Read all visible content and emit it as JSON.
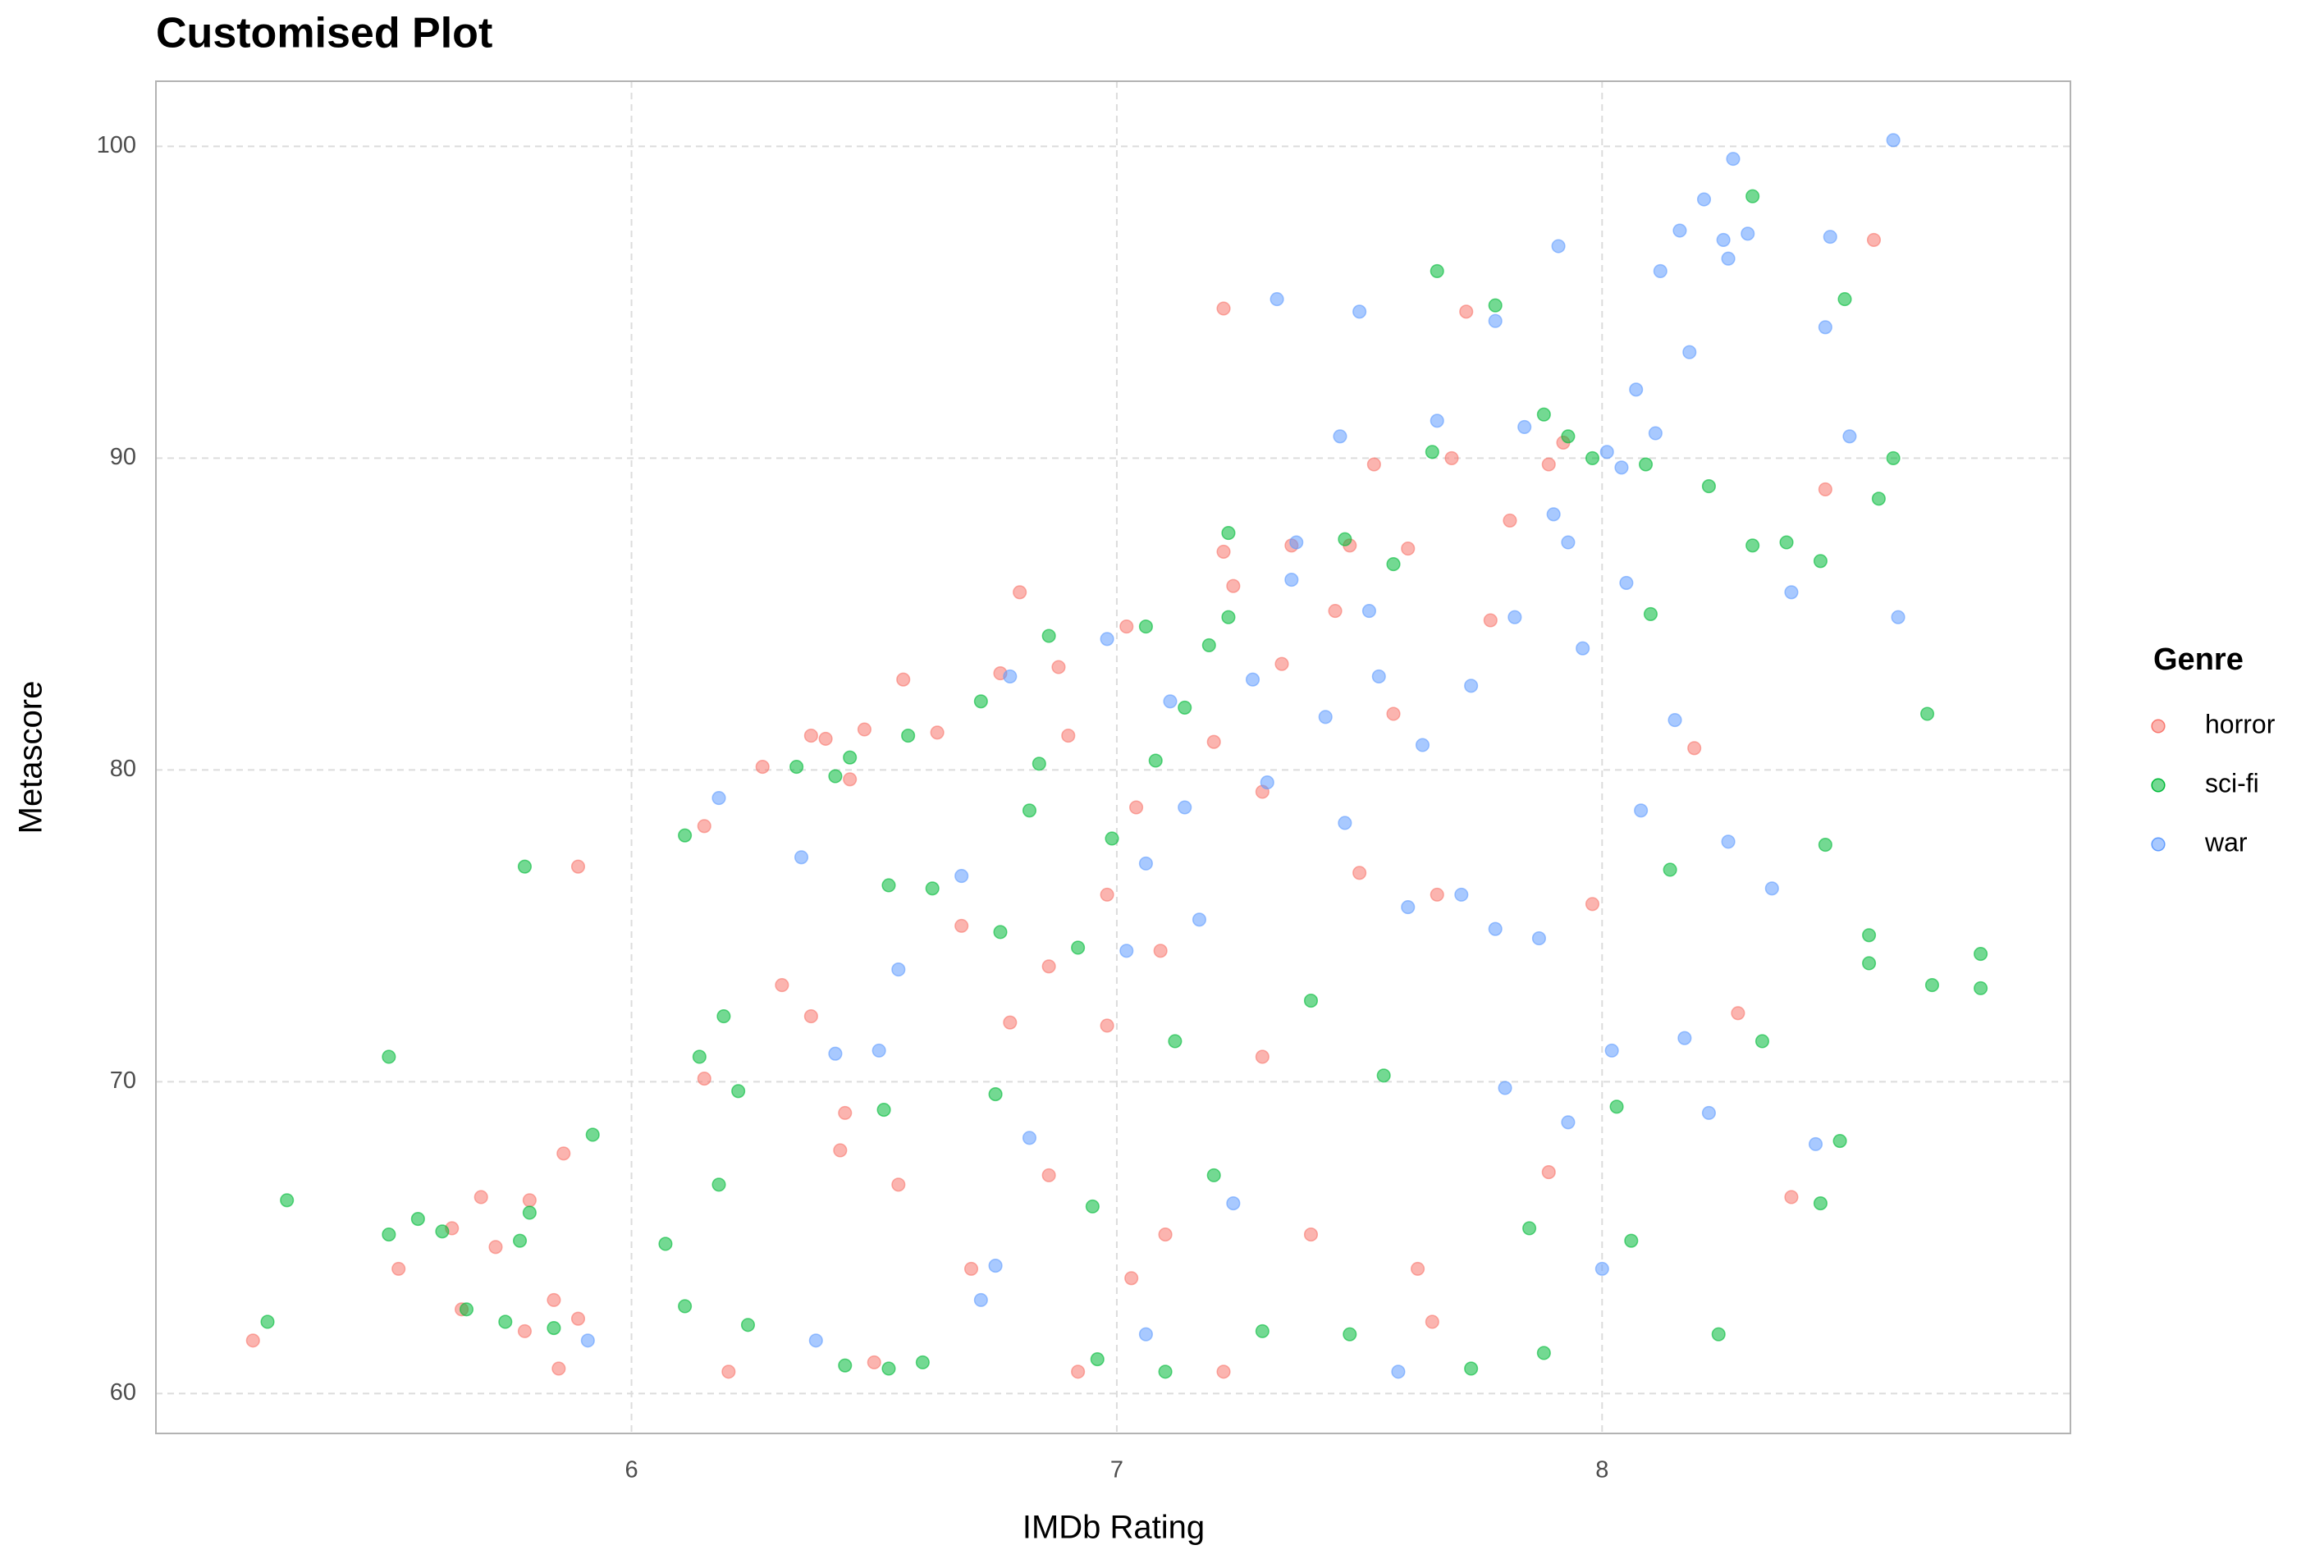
{
  "chart_data": {
    "type": "scatter",
    "title": "Customised Plot",
    "x_label": "IMDb Rating",
    "y_label": "Metascore",
    "legend_title": "Genre",
    "legend_position": "right",
    "grid": true,
    "xlim": [
      5.02,
      8.965
    ],
    "ylim": [
      58.72,
      102.09
    ],
    "xticks": [
      6,
      7,
      8
    ],
    "yticks": [
      60,
      70,
      80,
      90,
      100
    ],
    "series": [
      {
        "name": "horror",
        "color": "#F8766D",
        "x": [
          5.22,
          5.52,
          5.63,
          5.65,
          5.69,
          5.72,
          5.78,
          5.79,
          5.84,
          5.86,
          5.85,
          5.89,
          5.89,
          6.15,
          6.15,
          6.2,
          6.27,
          6.31,
          6.37,
          6.37,
          6.4,
          6.45,
          6.48,
          6.56,
          6.44,
          6.43,
          6.5,
          6.63,
          6.68,
          6.76,
          6.8,
          6.78,
          6.88,
          6.9,
          6.86,
          6.98,
          6.92,
          7.02,
          7.04,
          7.09,
          7.1,
          7.22,
          7.22,
          7.24,
          7.2,
          7.22,
          7.3,
          7.34,
          7.36,
          7.45,
          7.48,
          7.53,
          7.57,
          7.6,
          7.62,
          7.69,
          7.72,
          7.77,
          7.81,
          7.89,
          7.92,
          7.98,
          7.89,
          8.19,
          8.28,
          8.39,
          8.46,
          8.56,
          7.66,
          7.5,
          6.98,
          6.7,
          6.55,
          7.3,
          7.4,
          7.03,
          7.65,
          6.86
        ],
        "values": [
          61.7,
          64,
          65.3,
          62.7,
          66.3,
          64.7,
          62,
          66.2,
          63,
          67.7,
          60.8,
          76.9,
          62.4,
          78.2,
          70.1,
          60.7,
          80.1,
          73.1,
          81.1,
          72.1,
          81,
          79.7,
          81.3,
          82.9,
          69,
          67.8,
          61,
          81.2,
          75,
          83.1,
          85.7,
          71.9,
          83.3,
          81.1,
          73.7,
          76,
          60.7,
          84.6,
          78.8,
          74.2,
          65.1,
          94.8,
          87,
          85.9,
          80.9,
          60.7,
          79.3,
          83.4,
          87.2,
          85.1,
          87.2,
          89.8,
          81.8,
          87.1,
          64,
          90,
          94.7,
          84.8,
          88,
          89.8,
          90.5,
          75.7,
          67.1,
          80.7,
          72.2,
          66.3,
          89,
          97,
          76,
          76.7,
          71.8,
          64,
          66.7,
          70.8,
          65.1,
          63.7,
          62.3,
          67
        ]
      },
      {
        "name": "sci-fi",
        "color": "#00BA38",
        "x": [
          5.25,
          5.29,
          5.5,
          5.5,
          5.56,
          5.61,
          5.66,
          5.74,
          5.77,
          5.78,
          5.79,
          5.92,
          5.84,
          6.07,
          6.11,
          6.11,
          6.14,
          6.19,
          6.18,
          6.22,
          6.24,
          6.34,
          6.42,
          6.45,
          6.53,
          6.57,
          6.62,
          6.72,
          6.76,
          6.84,
          6.86,
          6.82,
          6.99,
          7.06,
          7.08,
          7.14,
          7.19,
          7.23,
          7.23,
          7.47,
          7.57,
          7.66,
          7.78,
          7.65,
          7.88,
          7.93,
          7.98,
          8.09,
          8.22,
          8.31,
          8.5,
          8.57,
          8.6,
          8.31,
          8.38,
          8.45,
          8.67,
          8.68,
          8.78,
          8.78,
          8.55,
          8.55,
          8.46,
          8.49,
          8.45,
          8.33,
          8.24,
          8.03,
          8.06,
          7.88,
          7.73,
          7.48,
          7.1,
          6.6,
          6.44,
          6.53,
          6.96,
          7.3,
          7.55,
          7.4,
          7.12,
          6.92,
          6.75,
          6.52,
          6.95,
          7.2,
          7.85,
          8.14,
          8.1
        ],
        "values": [
          62.3,
          66.2,
          65.1,
          70.8,
          65.6,
          65.2,
          62.7,
          62.3,
          64.9,
          76.9,
          65.8,
          68.3,
          62.1,
          64.8,
          62.8,
          77.9,
          70.8,
          72.1,
          66.7,
          69.7,
          62.2,
          80.1,
          79.8,
          80.4,
          76.3,
          81.1,
          76.2,
          82.2,
          74.8,
          80.2,
          84.3,
          78.7,
          77.8,
          84.6,
          80.3,
          82,
          84,
          87.6,
          84.9,
          87.4,
          86.6,
          96,
          94.9,
          90.2,
          91.4,
          90.7,
          90,
          89.8,
          89.1,
          98.4,
          95.1,
          88.7,
          90,
          87.2,
          87.3,
          86.7,
          81.8,
          73.1,
          74.1,
          73,
          74.7,
          73.8,
          77.6,
          68.1,
          66.1,
          71.3,
          61.9,
          69.2,
          64.9,
          61.3,
          60.8,
          61.9,
          60.7,
          61,
          60.9,
          60.8,
          61.1,
          62,
          70.2,
          72.6,
          71.3,
          74.3,
          69.6,
          69.1,
          66,
          67,
          65.3,
          76.8,
          85
        ]
      },
      {
        "name": "war",
        "color": "#619CFF",
        "x": [
          5.91,
          6.18,
          6.35,
          6.38,
          6.42,
          6.51,
          6.55,
          6.68,
          6.72,
          6.75,
          6.78,
          6.82,
          6.98,
          7.02,
          7.06,
          7.06,
          7.11,
          7.14,
          7.17,
          7.24,
          7.28,
          7.31,
          7.33,
          7.36,
          7.37,
          7.43,
          7.46,
          7.47,
          7.5,
          7.52,
          7.54,
          7.58,
          7.6,
          7.63,
          7.66,
          7.71,
          7.73,
          7.78,
          7.78,
          7.8,
          7.82,
          7.84,
          7.87,
          7.9,
          7.91,
          7.93,
          7.93,
          7.96,
          8,
          8.01,
          8.02,
          8.04,
          8.05,
          8.07,
          8.08,
          8.11,
          8.12,
          8.15,
          8.16,
          8.18,
          8.17,
          8.21,
          8.22,
          8.25,
          8.26,
          8.27,
          8.3,
          8.35,
          8.39,
          8.44,
          8.46,
          8.47,
          8.51,
          8.6,
          8.61,
          8.26
        ],
        "values": [
          61.7,
          79.1,
          77.2,
          61.7,
          70.9,
          71,
          73.6,
          76.6,
          63,
          64.1,
          83,
          68.2,
          84.2,
          74.2,
          77,
          61.9,
          82.2,
          78.8,
          75.2,
          66.1,
          82.9,
          79.6,
          95.1,
          86.1,
          87.3,
          81.7,
          90.7,
          78.3,
          94.7,
          85.1,
          83,
          60.7,
          75.6,
          80.8,
          91.2,
          76,
          82.7,
          94.4,
          74.9,
          69.8,
          84.9,
          91,
          74.6,
          88.2,
          96.8,
          87.3,
          68.7,
          83.9,
          64,
          90.2,
          71,
          89.7,
          86,
          92.2,
          78.7,
          90.8,
          96,
          81.6,
          97.3,
          93.4,
          71.4,
          98.3,
          69,
          97,
          96.4,
          99.6,
          97.2,
          76.2,
          85.7,
          68,
          94.2,
          97.1,
          90.7,
          100.2,
          84.9,
          77.7
        ]
      }
    ]
  }
}
